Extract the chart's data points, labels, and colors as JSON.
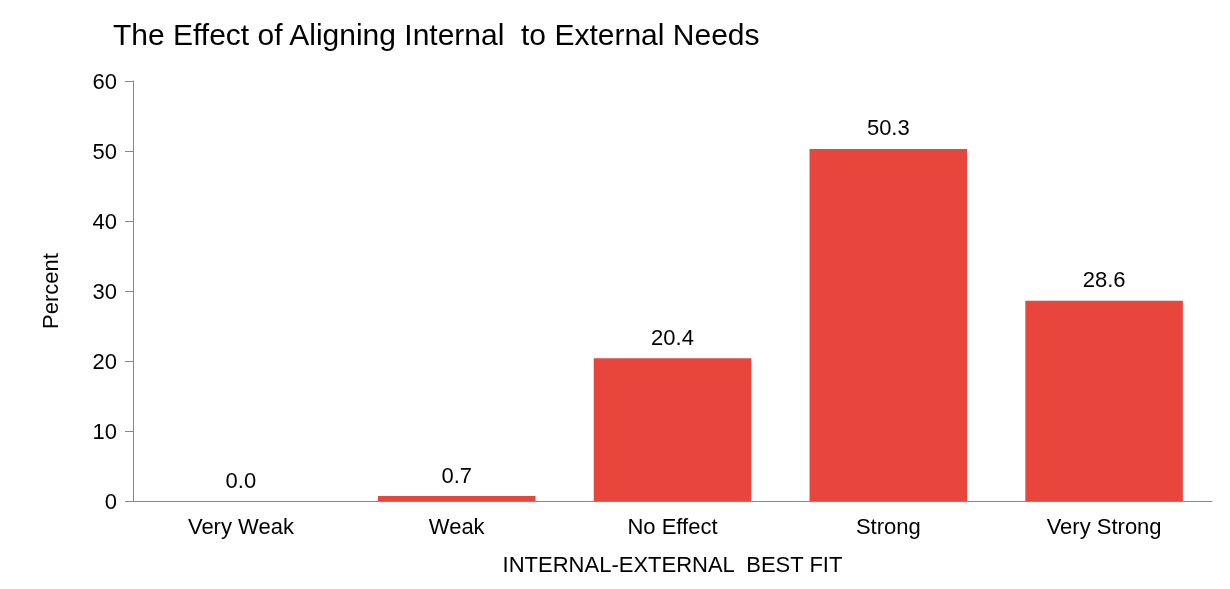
{
  "chart_data": {
    "type": "bar",
    "title": "The Effect of Aligning Internal  to External Needs",
    "xlabel": "INTERNAL-EXTERNAL  BEST FIT",
    "ylabel": "Percent",
    "categories": [
      "Very Weak",
      "Weak",
      "No Effect",
      "Strong",
      "Very Strong"
    ],
    "values": [
      0,
      0.7,
      20.4,
      50.3,
      28.6
    ],
    "value_labels": [
      "0.0",
      "0.7",
      "20.4",
      "50.3",
      "28.6"
    ],
    "color": "#e8453c",
    "ylim": [
      0,
      60
    ],
    "yticks": [
      0,
      10,
      20,
      30,
      40,
      50,
      60
    ],
    "grid": false
  }
}
